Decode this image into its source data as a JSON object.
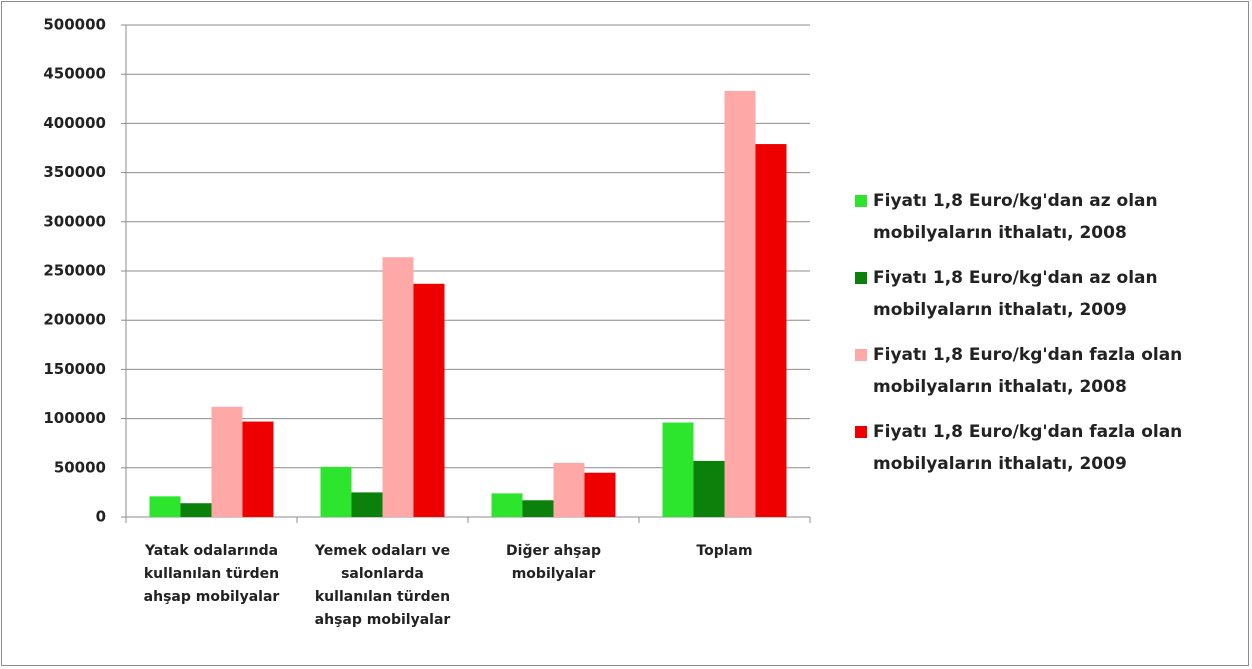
{
  "chart_data": {
    "type": "bar",
    "categories": [
      "Yatak odalarında kullanılan türden ahşap mobilyalar",
      "Yemek odaları ve salonlarda kullanılan türden ahşap mobilyalar",
      "Diğer ahşap mobilyalar",
      "Toplam"
    ],
    "series": [
      {
        "name": "Fiyatı 1,8 Euro/kg'dan az olan mobilyaların ithalatı, 2008",
        "color": "#2ee52e",
        "values": [
          21000,
          51000,
          24000,
          96000
        ]
      },
      {
        "name": "Fiyatı 1,8 Euro/kg'dan az olan mobilyaların ithalatı, 2009",
        "color": "#0b800b",
        "values": [
          14000,
          25000,
          17000,
          57000
        ]
      },
      {
        "name": "Fiyatı 1,8 Euro/kg'dan  fazla olan mobilyaların ithalatı, 2008",
        "color": "#ffa8a8",
        "values": [
          112000,
          264000,
          55000,
          433000
        ]
      },
      {
        "name": "Fiyatı 1,8 Euro/kg'dan fazla olan mobilyaların ithalatı, 2009",
        "color": "#ee0000",
        "values": [
          97000,
          237000,
          45000,
          379000
        ]
      }
    ],
    "ylim": [
      0,
      500000
    ],
    "yticks": [
      0,
      50000,
      100000,
      150000,
      200000,
      250000,
      300000,
      350000,
      400000,
      450000,
      500000
    ],
    "grid": true,
    "legend": "right"
  }
}
